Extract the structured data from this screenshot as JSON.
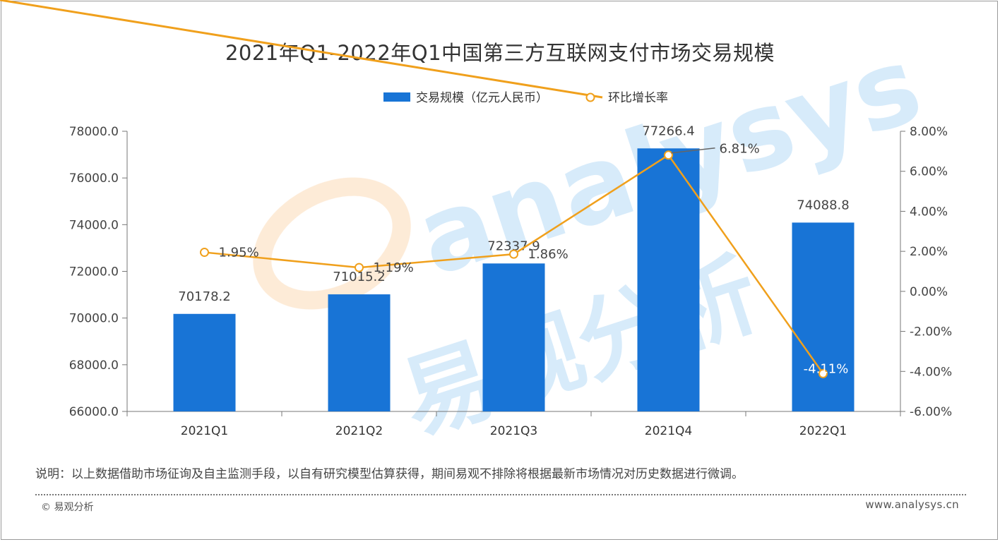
{
  "title": "2021年Q1-2022年Q1中国第三方互联网支付市场交易规模",
  "note": "说明：以上数据借助市场征询及自主监测手段，以自有研究模型估算获得，期间易观不排除将根据最新市场情况对历史数据进行微调。",
  "footer": {
    "copyright": "© 易观分析",
    "site": "www.analysys.cn"
  },
  "watermark": {
    "text_en": "analysys",
    "text_cn": "易观分析"
  },
  "colors": {
    "bar": "#1874d6",
    "line": "#f0a01c",
    "axis": "#777777"
  },
  "chart_data": {
    "type": "bar",
    "categories": [
      "2021Q1",
      "2021Q2",
      "2021Q3",
      "2021Q4",
      "2022Q1"
    ],
    "series": [
      {
        "name": "交易规模（亿元人民币）",
        "type": "bar",
        "axis": "left",
        "values": [
          70178.2,
          71015.2,
          72337.9,
          77266.4,
          74088.8
        ],
        "labels": [
          "70178.2",
          "71015.2",
          "72337.9",
          "77266.4",
          "74088.8"
        ]
      },
      {
        "name": "环比增长率",
        "type": "line",
        "axis": "right",
        "values": [
          1.95,
          1.19,
          1.86,
          6.81,
          -4.11
        ],
        "labels": [
          "1.95%",
          "1.19%",
          "1.86%",
          "6.81%",
          "-4.11%"
        ]
      }
    ],
    "y_left": {
      "range": [
        66000,
        78000
      ],
      "ticks": [
        "66000.0",
        "68000.0",
        "70000.0",
        "72000.0",
        "74000.0",
        "76000.0",
        "78000.0"
      ]
    },
    "y_right": {
      "range": [
        -6,
        8
      ],
      "ticks": [
        "-6.00%",
        "-4.00%",
        "-2.00%",
        "0.00%",
        "2.00%",
        "4.00%",
        "6.00%",
        "8.00%"
      ]
    },
    "legend_position": "top-center",
    "grid": false
  }
}
